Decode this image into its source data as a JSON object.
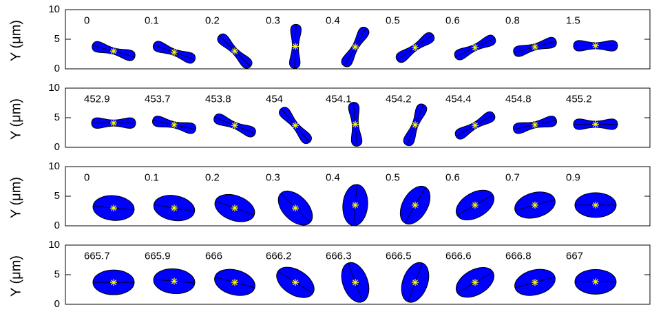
{
  "chart_data": [
    {
      "type": "shape",
      "ylabel": "Y (μm)",
      "ylim": [
        0,
        10
      ],
      "yticks": [
        0,
        5,
        10
      ],
      "shape": "dumbbell",
      "categories": [
        "0",
        "0.1",
        "0.2",
        "0.3",
        "0.4",
        "0.5",
        "0.6",
        "0.8",
        "1.5"
      ],
      "values": [
        3,
        2.8,
        3,
        3.8,
        3.7,
        3.6,
        3.6,
        3.7,
        3.9
      ],
      "color": "#0000ff",
      "center_color": "#ffff00"
    },
    {
      "type": "shape",
      "ylabel": "Y (μm)",
      "ylim": [
        0,
        10
      ],
      "yticks": [
        0,
        5,
        10
      ],
      "shape": "dumbbell",
      "categories": [
        "452.9",
        "453.7",
        "453.8",
        "454",
        "454.1",
        "454.2",
        "454.4",
        "454.8",
        "455.2"
      ],
      "values": [
        4.1,
        3.8,
        3.7,
        3.7,
        3.9,
        3.8,
        3.7,
        3.8,
        3.9
      ],
      "color": "#0000ff",
      "center_color": "#ffff00"
    },
    {
      "type": "shape",
      "ylabel": "Y (μm)",
      "ylim": [
        0,
        10
      ],
      "yticks": [
        0,
        5,
        10
      ],
      "shape": "ellipse",
      "categories": [
        "0",
        "0.1",
        "0.2",
        "0.3",
        "0.4",
        "0.5",
        "0.6",
        "0.7",
        "0.9"
      ],
      "values": [
        3,
        3,
        3,
        3,
        3.5,
        3.5,
        3.5,
        3.5,
        3.5
      ],
      "color": "#0000ff",
      "center_color": "#ffff00"
    },
    {
      "type": "shape",
      "ylabel": "Y (μm)",
      "ylim": [
        0,
        10
      ],
      "yticks": [
        0,
        5,
        10
      ],
      "shape": "ellipse",
      "categories": [
        "665.7",
        "665.9",
        "666",
        "666.2",
        "666.3",
        "666.5",
        "666.6",
        "666.8",
        "667"
      ],
      "values": [
        3.7,
        3.9,
        3.7,
        3.7,
        3.7,
        3.7,
        3.7,
        3.7,
        3.8
      ],
      "color": "#0000ff",
      "center_color": "#ffff00"
    }
  ]
}
